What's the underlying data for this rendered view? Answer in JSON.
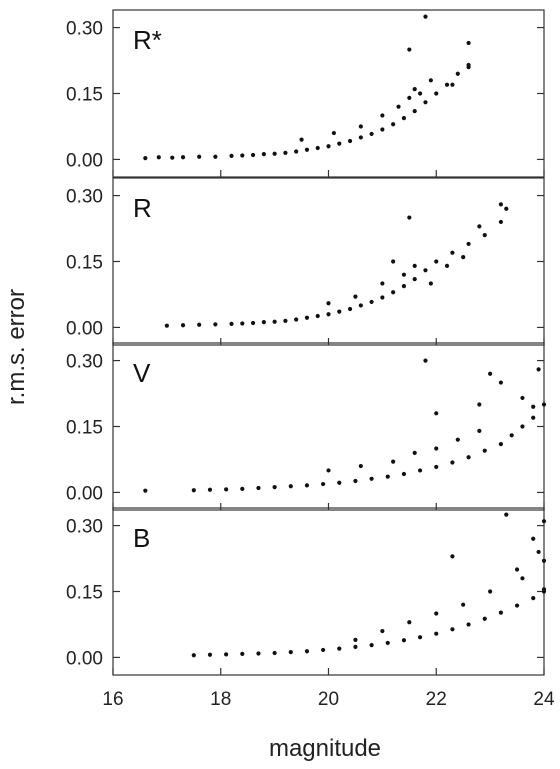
{
  "chart_data": {
    "type": "scatter",
    "xlabel": "magnitude",
    "ylabel": "r.m.s. error",
    "xlim": [
      16,
      24
    ],
    "ylim": [
      -0.04,
      0.34
    ],
    "xticks": [
      "16",
      "18",
      "20",
      "22",
      "24"
    ],
    "yticks": [
      "0.00",
      "0.15",
      "0.30"
    ],
    "panels": [
      {
        "label": "R*",
        "points": [
          [
            16.6,
            0.003
          ],
          [
            16.85,
            0.005
          ],
          [
            17.1,
            0.004
          ],
          [
            17.3,
            0.005
          ],
          [
            17.6,
            0.006
          ],
          [
            17.9,
            0.006
          ],
          [
            18.2,
            0.008
          ],
          [
            18.4,
            0.009
          ],
          [
            18.6,
            0.01
          ],
          [
            18.8,
            0.012
          ],
          [
            19.0,
            0.013
          ],
          [
            19.2,
            0.015
          ],
          [
            19.4,
            0.018
          ],
          [
            19.6,
            0.022
          ],
          [
            19.8,
            0.026
          ],
          [
            20.0,
            0.03
          ],
          [
            20.2,
            0.036
          ],
          [
            20.4,
            0.042
          ],
          [
            20.6,
            0.05
          ],
          [
            20.8,
            0.058
          ],
          [
            21.0,
            0.068
          ],
          [
            21.2,
            0.08
          ],
          [
            21.4,
            0.094
          ],
          [
            21.6,
            0.11
          ],
          [
            21.8,
            0.13
          ],
          [
            22.0,
            0.15
          ],
          [
            22.2,
            0.17
          ],
          [
            22.4,
            0.195
          ],
          [
            22.6,
            0.215
          ],
          [
            19.5,
            0.045
          ],
          [
            20.1,
            0.06
          ],
          [
            20.6,
            0.075
          ],
          [
            21.0,
            0.1
          ],
          [
            21.3,
            0.12
          ],
          [
            21.5,
            0.14
          ],
          [
            21.6,
            0.16
          ],
          [
            21.5,
            0.25
          ],
          [
            21.8,
            0.325
          ],
          [
            22.6,
            0.265
          ],
          [
            22.6,
            0.21
          ],
          [
            22.3,
            0.17
          ],
          [
            21.9,
            0.18
          ],
          [
            21.7,
            0.15
          ]
        ]
      },
      {
        "label": "R",
        "points": [
          [
            17.0,
            0.004
          ],
          [
            17.3,
            0.005
          ],
          [
            17.6,
            0.006
          ],
          [
            17.9,
            0.007
          ],
          [
            18.2,
            0.008
          ],
          [
            18.4,
            0.009
          ],
          [
            18.6,
            0.01
          ],
          [
            18.8,
            0.012
          ],
          [
            19.0,
            0.013
          ],
          [
            19.2,
            0.015
          ],
          [
            19.4,
            0.018
          ],
          [
            19.6,
            0.022
          ],
          [
            19.8,
            0.026
          ],
          [
            20.0,
            0.03
          ],
          [
            20.2,
            0.036
          ],
          [
            20.4,
            0.042
          ],
          [
            20.6,
            0.05
          ],
          [
            20.8,
            0.058
          ],
          [
            21.0,
            0.068
          ],
          [
            21.2,
            0.08
          ],
          [
            21.4,
            0.094
          ],
          [
            21.6,
            0.11
          ],
          [
            21.8,
            0.13
          ],
          [
            22.0,
            0.15
          ],
          [
            22.3,
            0.17
          ],
          [
            22.6,
            0.19
          ],
          [
            22.9,
            0.21
          ],
          [
            23.2,
            0.24
          ],
          [
            23.3,
            0.27
          ],
          [
            20.0,
            0.055
          ],
          [
            20.5,
            0.07
          ],
          [
            21.0,
            0.1
          ],
          [
            21.2,
            0.15
          ],
          [
            21.4,
            0.12
          ],
          [
            21.6,
            0.14
          ],
          [
            21.5,
            0.25
          ],
          [
            22.8,
            0.23
          ],
          [
            23.2,
            0.28
          ],
          [
            22.5,
            0.16
          ],
          [
            22.2,
            0.14
          ],
          [
            21.9,
            0.1
          ]
        ]
      },
      {
        "label": "V",
        "points": [
          [
            16.6,
            0.004
          ],
          [
            17.5,
            0.005
          ],
          [
            17.8,
            0.006
          ],
          [
            18.1,
            0.007
          ],
          [
            18.4,
            0.008
          ],
          [
            18.7,
            0.01
          ],
          [
            19.0,
            0.012
          ],
          [
            19.3,
            0.014
          ],
          [
            19.6,
            0.016
          ],
          [
            19.9,
            0.019
          ],
          [
            20.2,
            0.022
          ],
          [
            20.5,
            0.026
          ],
          [
            20.8,
            0.031
          ],
          [
            21.1,
            0.036
          ],
          [
            21.4,
            0.042
          ],
          [
            21.7,
            0.05
          ],
          [
            22.0,
            0.058
          ],
          [
            22.3,
            0.068
          ],
          [
            22.6,
            0.08
          ],
          [
            22.9,
            0.095
          ],
          [
            23.2,
            0.11
          ],
          [
            23.4,
            0.13
          ],
          [
            23.6,
            0.15
          ],
          [
            23.8,
            0.17
          ],
          [
            24.0,
            0.2
          ],
          [
            20.0,
            0.05
          ],
          [
            20.6,
            0.06
          ],
          [
            21.2,
            0.07
          ],
          [
            21.6,
            0.09
          ],
          [
            22.0,
            0.1
          ],
          [
            22.4,
            0.12
          ],
          [
            22.8,
            0.14
          ],
          [
            21.8,
            0.3
          ],
          [
            22.0,
            0.18
          ],
          [
            22.8,
            0.2
          ],
          [
            23.0,
            0.27
          ],
          [
            23.2,
            0.25
          ],
          [
            23.6,
            0.215
          ],
          [
            23.8,
            0.195
          ],
          [
            23.9,
            0.28
          ]
        ]
      },
      {
        "label": "B",
        "points": [
          [
            17.5,
            0.005
          ],
          [
            17.8,
            0.006
          ],
          [
            18.1,
            0.007
          ],
          [
            18.4,
            0.008
          ],
          [
            18.7,
            0.009
          ],
          [
            19.0,
            0.01
          ],
          [
            19.3,
            0.012
          ],
          [
            19.6,
            0.014
          ],
          [
            19.9,
            0.017
          ],
          [
            20.2,
            0.02
          ],
          [
            20.5,
            0.024
          ],
          [
            20.8,
            0.028
          ],
          [
            21.1,
            0.033
          ],
          [
            21.4,
            0.039
          ],
          [
            21.7,
            0.046
          ],
          [
            22.0,
            0.054
          ],
          [
            22.3,
            0.064
          ],
          [
            22.6,
            0.075
          ],
          [
            22.9,
            0.088
          ],
          [
            23.2,
            0.102
          ],
          [
            23.5,
            0.118
          ],
          [
            23.8,
            0.135
          ],
          [
            24.0,
            0.155
          ],
          [
            20.5,
            0.04
          ],
          [
            21.0,
            0.06
          ],
          [
            21.5,
            0.08
          ],
          [
            22.0,
            0.1
          ],
          [
            22.5,
            0.12
          ],
          [
            23.0,
            0.15
          ],
          [
            23.5,
            0.2
          ],
          [
            22.3,
            0.23
          ],
          [
            23.3,
            0.325
          ],
          [
            23.8,
            0.27
          ],
          [
            24.0,
            0.31
          ],
          [
            23.9,
            0.24
          ],
          [
            24.0,
            0.22
          ],
          [
            23.6,
            0.18
          ],
          [
            24.0,
            0.15
          ]
        ]
      }
    ]
  }
}
